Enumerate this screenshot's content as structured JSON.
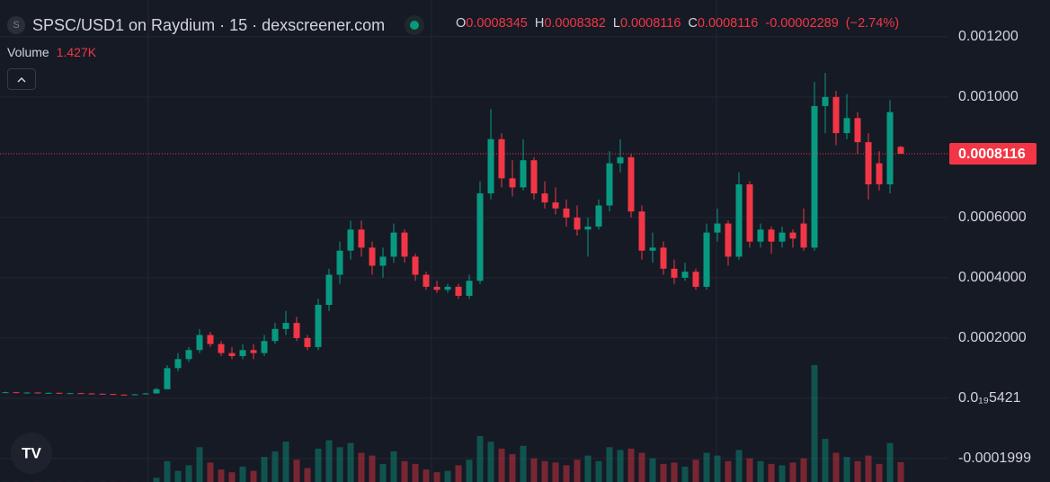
{
  "chart_data": {
    "type": "candlestick",
    "title": "SPSC/USD1 on Raydium · 15 · dexscreener.com",
    "ohlc_labels": [
      "O",
      "H",
      "L",
      "C"
    ],
    "change": -2.289e-05,
    "change_pct": {
      "value": -2.74,
      "label": "(−2.74%)"
    },
    "up_color": "#089981",
    "down_color": "#f23645",
    "grid": true,
    "ylim": [
      -0.000278,
      0.001322
    ],
    "yticks": [
      {
        "value": 0.0012,
        "label": "0.001200"
      },
      {
        "value": 0.001,
        "label": "0.001000"
      },
      {
        "value": 0.0006,
        "label": "0.0006000"
      },
      {
        "value": 0.0004,
        "label": "0.0004000"
      },
      {
        "value": 0.0002,
        "label": "0.0002000"
      },
      {
        "value": 5.421e-20,
        "label": "0.0₁₉5421"
      },
      {
        "value": -0.0001999,
        "label": "-0.0001999"
      }
    ],
    "open": [
      2e-05,
      2e-05,
      1.9e-05,
      1.9e-05,
      1.8e-05,
      1.8e-05,
      1.7e-05,
      1.7e-05,
      1.6e-05,
      1.5e-05,
      1.4e-05,
      1.2e-05,
      1.1e-05,
      1.3e-05,
      1.6e-05,
      3e-05,
      0.0001,
      0.00013,
      0.00016,
      0.00021,
      0.00018,
      0.00015,
      0.00014,
      0.00016,
      0.00015,
      0.00019,
      0.00023,
      0.00025,
      0.0002,
      0.00017,
      0.00031,
      0.00041,
      0.00049,
      0.00056,
      0.0005,
      0.00044,
      0.00047,
      0.00055,
      0.00047,
      0.00041,
      0.00037,
      0.00036,
      0.00037,
      0.00034,
      0.00039,
      0.00068,
      0.00086,
      0.00073,
      0.0007,
      0.00079,
      0.00068,
      0.00065,
      0.00063,
      0.0006,
      0.00056,
      0.00057,
      0.00064,
      0.00078,
      0.0008,
      0.00062,
      0.00049,
      0.0005,
      0.00043,
      0.0004,
      0.00042,
      0.00037,
      0.00055,
      0.00058,
      0.00047,
      0.00071,
      0.00052,
      0.00056,
      0.00052,
      0.00055,
      0.00058,
      0.0005,
      0.00097,
      0.001,
      0.00088,
      0.00093,
      0.00085,
      0.00078,
      0.00071,
      0.0008345
    ],
    "high": [
      2.2e-05,
      2.1e-05,
      2e-05,
      2e-05,
      1.9e-05,
      1.9e-05,
      1.8e-05,
      1.8e-05,
      1.7e-05,
      1.6e-05,
      1.5e-05,
      1.3e-05,
      1.4e-05,
      1.8e-05,
      3.5e-05,
      0.00011,
      0.00015,
      0.00017,
      0.00023,
      0.00022,
      0.00019,
      0.00017,
      0.00018,
      0.00018,
      0.00021,
      0.00025,
      0.00029,
      0.00027,
      0.00021,
      0.00033,
      0.00043,
      0.00052,
      0.00059,
      0.00059,
      0.00052,
      0.0005,
      0.00058,
      0.00056,
      0.00048,
      0.00042,
      0.00039,
      0.00038,
      0.00038,
      0.00041,
      0.00072,
      0.00096,
      0.00088,
      0.00079,
      0.00086,
      0.0008,
      0.00072,
      0.0007,
      0.00066,
      0.00064,
      0.0006,
      0.00066,
      0.00082,
      0.00086,
      0.00081,
      0.00064,
      0.00055,
      0.00052,
      0.00046,
      0.00045,
      0.00043,
      0.00058,
      0.00063,
      0.00059,
      0.00075,
      0.00072,
      0.00058,
      0.00057,
      0.00057,
      0.00056,
      0.00063,
      0.00105,
      0.00108,
      0.00102,
      0.00101,
      0.00095,
      0.00088,
      0.00082,
      0.00099,
      0.0008382
    ],
    "low": [
      1.9e-05,
      1.8e-05,
      1.8e-05,
      1.7e-05,
      1.7e-05,
      1.6e-05,
      1.6e-05,
      1.5e-05,
      1.4e-05,
      1.3e-05,
      1.1e-05,
      1e-05,
      1e-05,
      1.2e-05,
      1.5e-05,
      3e-05,
      9e-05,
      0.00012,
      0.00015,
      0.00017,
      0.00014,
      0.00013,
      0.00013,
      0.00013,
      0.00014,
      0.00018,
      0.00021,
      0.00019,
      0.00016,
      0.00016,
      0.00029,
      0.00038,
      0.00046,
      0.00047,
      0.00041,
      0.0004,
      0.00045,
      0.00045,
      0.00039,
      0.00036,
      0.00035,
      0.00035,
      0.00033,
      0.00033,
      0.00038,
      0.00066,
      0.0007,
      0.00067,
      0.00069,
      0.00066,
      0.00063,
      0.00061,
      0.00057,
      0.00054,
      0.00047,
      0.00056,
      0.00062,
      0.00075,
      0.0006,
      0.00046,
      0.00045,
      0.00041,
      0.00038,
      0.00039,
      0.00036,
      0.00036,
      0.00052,
      0.00044,
      0.00046,
      0.0005,
      0.0005,
      0.00048,
      0.0005,
      0.0005,
      0.00049,
      0.00049,
      0.00088,
      0.00084,
      0.00086,
      0.00081,
      0.00066,
      0.00069,
      0.00068,
      0.0008116
    ],
    "close": [
      2e-05,
      1.9e-05,
      1.9e-05,
      1.8e-05,
      1.8e-05,
      1.7e-05,
      1.7e-05,
      1.6e-05,
      1.5e-05,
      1.4e-05,
      1.2e-05,
      1.1e-05,
      1.3e-05,
      1.6e-05,
      3e-05,
      0.0001,
      0.00013,
      0.00016,
      0.00021,
      0.00018,
      0.00015,
      0.00014,
      0.00016,
      0.00015,
      0.00019,
      0.00023,
      0.00025,
      0.0002,
      0.00017,
      0.00031,
      0.00041,
      0.00049,
      0.00056,
      0.0005,
      0.00044,
      0.00047,
      0.00055,
      0.00047,
      0.00041,
      0.00037,
      0.00036,
      0.00037,
      0.00034,
      0.00039,
      0.00068,
      0.00086,
      0.00073,
      0.0007,
      0.00079,
      0.00068,
      0.00065,
      0.00063,
      0.0006,
      0.00056,
      0.00057,
      0.00064,
      0.00078,
      0.0008,
      0.00062,
      0.00049,
      0.0005,
      0.00043,
      0.0004,
      0.00042,
      0.00037,
      0.00055,
      0.00058,
      0.00047,
      0.00071,
      0.00052,
      0.00056,
      0.00052,
      0.00055,
      0.00053,
      0.0005,
      0.00097,
      0.001,
      0.00088,
      0.00093,
      0.00085,
      0.00071,
      0.00071,
      0.00095,
      0.0008116
    ],
    "volume": {
      "name": "Volume",
      "values": [
        5,
        5,
        5,
        5,
        5,
        5,
        5,
        5,
        5,
        5,
        5,
        5,
        5,
        5,
        300,
        1500,
        800,
        1200,
        2500,
        1400,
        900,
        700,
        1100,
        800,
        1800,
        2200,
        2900,
        1600,
        1000,
        2400,
        3000,
        2500,
        2800,
        2100,
        1900,
        1300,
        2200,
        1500,
        1300,
        900,
        700,
        800,
        1200,
        1600,
        3300,
        2900,
        2400,
        2000,
        2600,
        1700,
        1500,
        1400,
        1200,
        1600,
        1900,
        1500,
        2500,
        2300,
        2400,
        2100,
        1700,
        1300,
        1400,
        1100,
        1600,
        2100,
        1900,
        1500,
        2300,
        1700,
        1500,
        1300,
        1200,
        1400,
        1700,
        8400,
        3100,
        2100,
        1800,
        1500,
        1900,
        1300,
        2800,
        1427
      ],
      "value_labels": [
        null,
        null,
        null,
        null,
        null,
        null,
        null,
        null,
        null,
        null,
        null,
        null,
        null,
        null,
        null,
        null,
        null,
        null,
        null,
        null,
        null,
        null,
        null,
        null,
        null,
        null,
        null,
        null,
        null,
        null,
        null,
        null,
        null,
        null,
        null,
        null,
        null,
        null,
        null,
        null,
        null,
        null,
        null,
        null,
        null,
        null,
        null,
        null,
        null,
        null,
        null,
        null,
        null,
        null,
        null,
        null,
        null,
        null,
        null,
        null,
        null,
        null,
        null,
        null,
        null,
        null,
        null,
        null,
        null,
        null,
        null,
        null,
        null,
        null,
        null,
        null,
        null,
        null,
        null,
        null,
        null,
        null,
        null,
        "1.427K"
      ]
    }
  }
}
